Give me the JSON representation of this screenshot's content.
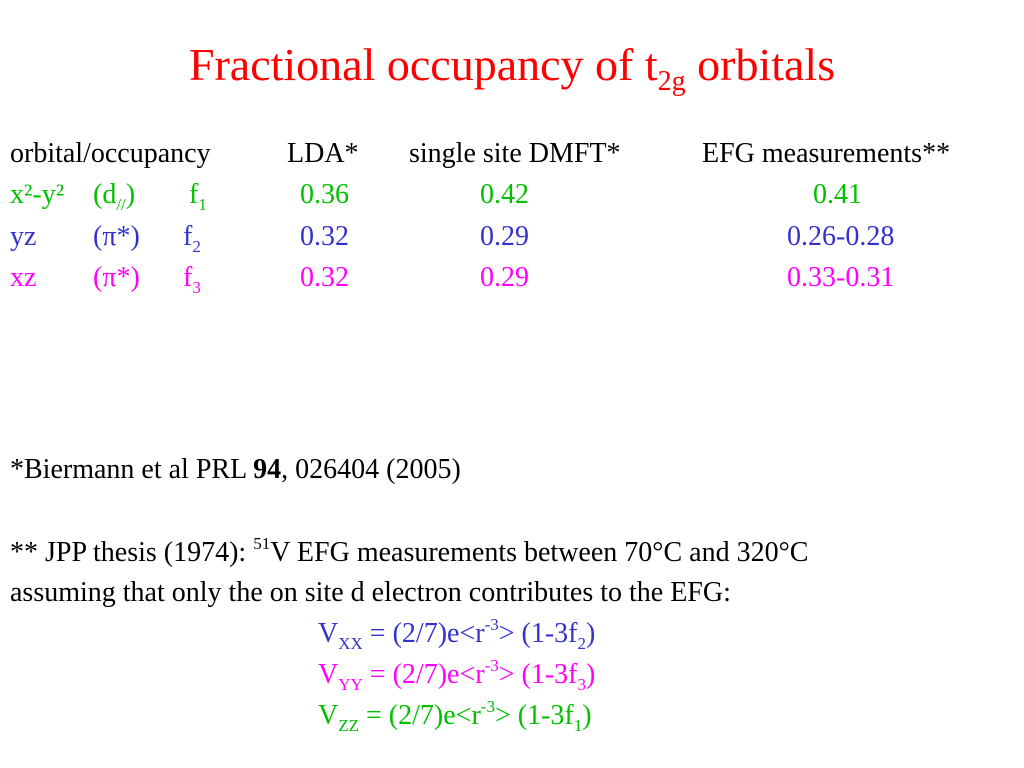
{
  "title": {
    "pre": "Fractional occupancy of t",
    "sub": "2g",
    "post": " orbitals"
  },
  "table": {
    "headers": [
      "orbital/occupancy",
      "LDA*",
      "single site DMFT*",
      "EFG measurements**"
    ],
    "rows": [
      {
        "orbital": "x²-y²",
        "type_pre": "(d",
        "type_sub": "//",
        "type_post": ")",
        "f": "f",
        "f_sub": "1",
        "lda": "0.36",
        "dmft": "0.42",
        "efg": "0.41",
        "color": "#00c000"
      },
      {
        "orbital": "yz",
        "type_pre": "(π*)",
        "type_sub": "",
        "type_post": "",
        "f": "f",
        "f_sub": "2",
        "lda": "0.32",
        "dmft": "0.29",
        "efg": "0.26-0.28",
        "color": "#3333cc"
      },
      {
        "orbital": "xz",
        "type_pre": "(π*)",
        "type_sub": "",
        "type_post": "",
        "f": "f",
        "f_sub": "3",
        "lda": "0.32",
        "dmft": "0.29",
        "efg": "0.33-0.31",
        "color": "#ff00ff"
      }
    ]
  },
  "refs": {
    "biermann": {
      "pre": "*Biermann et al PRL ",
      "bold": "94",
      "post": ", 026404 (2005)"
    },
    "jpp": {
      "pre": " ** JPP thesis (1974): ",
      "sup": "51",
      "post": "V EFG measurements between 70°C and 320°C"
    },
    "jpp_line2": "assuming that only the on site d electron contributes to the EFG:"
  },
  "equations": [
    {
      "v": "V",
      "sub": "XX",
      "mid": " = (2/7)e<r",
      "sup": "-3",
      "post": "> (1-3f",
      "fsub": "2",
      "end": ")",
      "color": "#3333cc"
    },
    {
      "v": "V",
      "sub": "YY",
      "mid": " = (2/7)e<r",
      "sup": "-3",
      "post": "> (1-3f",
      "fsub": "3",
      "end": ")",
      "color": "#ff00ff"
    },
    {
      "v": "V",
      "sub": "ZZ",
      "mid": " = (2/7)e<r",
      "sup": "-3",
      "post": "> (1-3f",
      "fsub": "1",
      "end": ")",
      "color": "#00c000"
    }
  ]
}
